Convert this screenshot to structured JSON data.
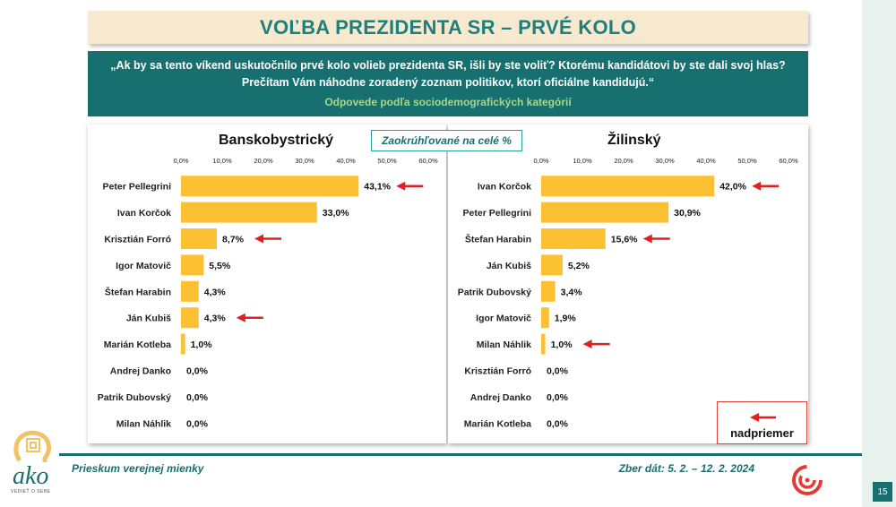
{
  "title": "VOĽBA PREZIDENTA SR – PRVÉ KOLO",
  "question": "„Ak by sa tento víkend uskutočnilo prvé kolo volieb prezidenta SR, išli by ste voliť? Ktorému kandidátovi by ste dali svoj hlas? Prečítam Vám náhodne zoradený zoznam politikov, ktorí oficiálne kandidujú.“",
  "subtitle": "Odpovede podľa sociodemografických kategórií",
  "note": "Zaokrúhľované na celé %",
  "legend_label": "nadpriemer",
  "footer": {
    "left": "Prieskum verejnej mienky",
    "right": "Zber dát: 5. 2. – 12. 2. 2024",
    "page": "15",
    "logo_word": "ako",
    "logo_tag": "VEDIEŤ O SEBE"
  },
  "colors": {
    "bar": "#fcc133",
    "arrow": "#e02020",
    "teal": "#17706f"
  },
  "chart_data": [
    {
      "type": "bar",
      "orientation": "horizontal",
      "title": "Banskobystrický",
      "xlim": [
        0,
        60
      ],
      "ticks": [
        "0,0%",
        "10,0%",
        "20,0%",
        "30,0%",
        "40,0%",
        "50,0%",
        "60,0%"
      ],
      "categories": [
        "Peter Pellegrini",
        "Ivan Korčok",
        "Krisztián Forró",
        "Igor Matovič",
        "Štefan Harabin",
        "Ján Kubiš",
        "Marián Kotleba",
        "Andrej Danko",
        "Patrik Dubovský",
        "Milan Náhlik"
      ],
      "values": [
        43.1,
        33.0,
        8.7,
        5.5,
        4.3,
        4.3,
        1.0,
        0.0,
        0.0,
        0.0
      ],
      "labels": [
        "43,1%",
        "33,0%",
        "8,7%",
        "5,5%",
        "4,3%",
        "4,3%",
        "1,0%",
        "0,0%",
        "0,0%",
        "0,0%"
      ],
      "above_average": [
        true,
        false,
        true,
        false,
        false,
        true,
        false,
        false,
        false,
        false
      ]
    },
    {
      "type": "bar",
      "orientation": "horizontal",
      "title": "Žilinský",
      "xlim": [
        0,
        60
      ],
      "ticks": [
        "0,0%",
        "10,0%",
        "20,0%",
        "30,0%",
        "40,0%",
        "50,0%",
        "60,0%"
      ],
      "categories": [
        "Ivan Korčok",
        "Peter Pellegrini",
        "Štefan Harabin",
        "Ján Kubiš",
        "Patrik Dubovský",
        "Igor Matovič",
        "Milan Náhlik",
        "Krisztián Forró",
        "Andrej Danko",
        "Marián Kotleba"
      ],
      "values": [
        42.0,
        30.9,
        15.6,
        5.2,
        3.4,
        1.9,
        1.0,
        0.0,
        0.0,
        0.0
      ],
      "labels": [
        "42,0%",
        "30,9%",
        "15,6%",
        "5,2%",
        "3,4%",
        "1,9%",
        "1,0%",
        "0,0%",
        "0,0%",
        "0,0%"
      ],
      "above_average": [
        true,
        false,
        true,
        false,
        false,
        false,
        true,
        false,
        false,
        false
      ]
    }
  ]
}
